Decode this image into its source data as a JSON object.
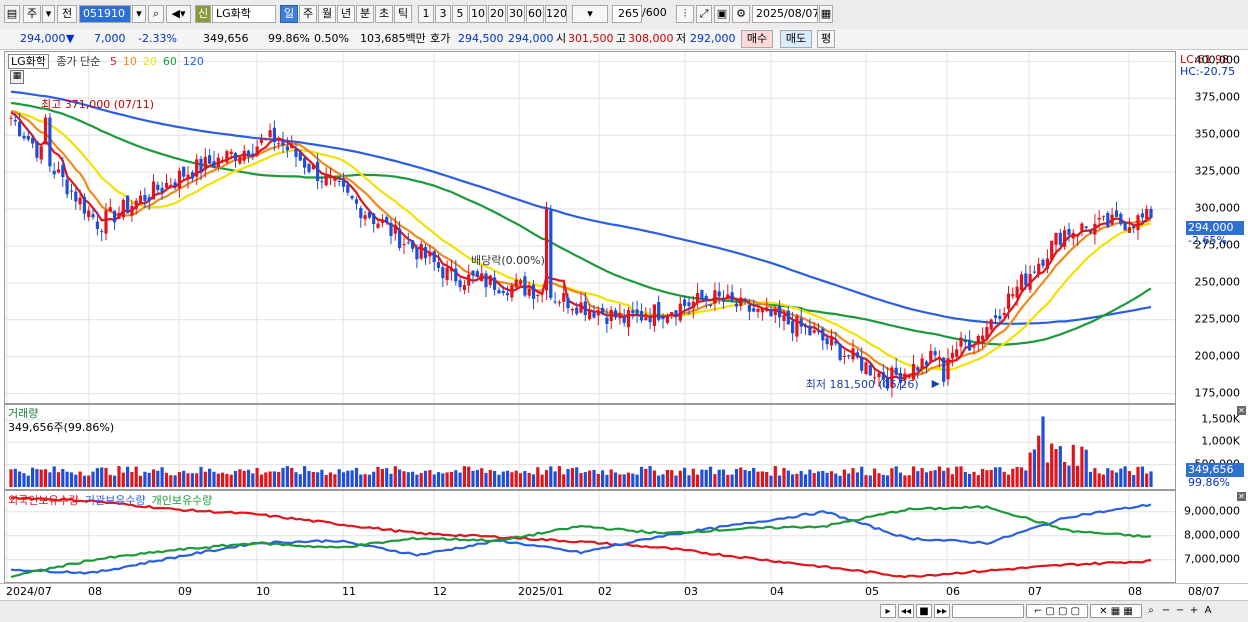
{
  "toolbar": {
    "type_label": "주",
    "mode_label": "전",
    "code": "051910",
    "badge": "신",
    "name": "LG화학",
    "periods": [
      "일",
      "주",
      "월",
      "년",
      "분",
      "초",
      "틱"
    ],
    "active_period": "일",
    "intervals": [
      "1",
      "3",
      "5",
      "10",
      "20",
      "30",
      "60",
      "120"
    ],
    "count": "265",
    "count_max": "/600",
    "date": "2025/08/07"
  },
  "quote": {
    "price": "294,000",
    "arrow": "▼",
    "change": "7,000",
    "change_pct": "-2.33%",
    "volume": "349,656",
    "vol_ratio": "99.86%",
    "turnover_pct": "0.50%",
    "amount": "103,685백만",
    "hoga_label": "호가",
    "ask": "294,500",
    "bid": "294,000",
    "open_label": "시",
    "open": "301,500",
    "high_label": "고",
    "high": "308,000",
    "low_label": "저",
    "low": "292,000",
    "buy_label": "매수",
    "sell_label": "매도",
    "avg_label": "평"
  },
  "price_panel": {
    "stock_name": "LG화학",
    "ma_title": "종가 단순",
    "ma_periods": [
      "5",
      "10",
      "20",
      "60",
      "120"
    ],
    "ma_colors": [
      "#e0141b",
      "#f08a1a",
      "#f4e100",
      "#1c9a3a",
      "#2a5fe0"
    ],
    "lc_label": "LC:61.98",
    "hc_label": "HC:-20.75",
    "current_tag": "294,000",
    "current_pct": "-2.65%",
    "high_annotation": "최고 371,000 (07/11)",
    "low_annotation": "최저 181,500 (05/26)",
    "dividend_annotation": "배당락(0.00%)",
    "y_ticks": [
      "400,000",
      "375,000",
      "350,000",
      "325,000",
      "300,000",
      "275,000",
      "250,000",
      "225,000",
      "200,000",
      "175,000"
    ]
  },
  "volume_panel": {
    "title": "거래량",
    "value": "349,656주(99.86%)",
    "y_ticks": [
      "1,500K",
      "1,000K",
      "500,000"
    ],
    "current_tag": "349,656",
    "current_pct": "99.86%"
  },
  "holdings_panel": {
    "series_names": [
      "외국인보유수량",
      "기관보유수량",
      "개인보유수량"
    ],
    "series_colors": [
      "#e0141b",
      "#2a5fe0",
      "#1c9a3a"
    ],
    "y_ticks": [
      "9,000,000",
      "8,000,000",
      "7,000,000"
    ]
  },
  "x_axis": {
    "labels": [
      "2024/07",
      "08",
      "09",
      "10",
      "11",
      "12",
      "2025/01",
      "02",
      "03",
      "04",
      "05",
      "06",
      "07",
      "08",
      "08/07"
    ]
  },
  "chart_data": {
    "type": "candlestick",
    "price_ylim": [
      170000,
      405000
    ],
    "key_points": [
      {
        "date": "2024/07/11",
        "label": "최고",
        "price": 371000
      },
      {
        "date": "2025/05/26",
        "label": "최저",
        "price": 181500
      },
      {
        "date": "2025/08/07",
        "label": "close",
        "price": 294000
      }
    ],
    "close_path": [
      {
        "month": "2024/07",
        "close": 362000
      },
      {
        "month": "2024/08",
        "close": 290000
      },
      {
        "month": "2024/09",
        "close": 325000
      },
      {
        "month": "2024/10",
        "close": 348000
      },
      {
        "month": "2024/11",
        "close": 300000
      },
      {
        "month": "2024/12",
        "close": 255000
      },
      {
        "month": "2025/01",
        "close": 245000
      },
      {
        "month": "2025/02",
        "close": 225000
      },
      {
        "month": "2025/03",
        "close": 240000
      },
      {
        "month": "2025/04",
        "close": 220000
      },
      {
        "month": "2025/05",
        "close": 185000
      },
      {
        "month": "2025/06",
        "close": 212000
      },
      {
        "month": "2025/07",
        "close": 285000
      },
      {
        "month": "2025/08",
        "close": 294000
      }
    ],
    "volume_ylim": [
      0,
      1700000
    ],
    "volume_last": 349656,
    "holdings_ylim": [
      6200000,
      9700000
    ],
    "holdings_series": [
      {
        "name": "외국인보유수량",
        "start": 9600000,
        "mid": 8000000,
        "min": 6250000,
        "end": 6950000
      },
      {
        "name": "기관보유수량",
        "start": 6600000,
        "mid": 7800000,
        "max": 9600000,
        "end": 9300000
      },
      {
        "name": "개인보유수량",
        "start": 6300000,
        "mid": 7900000,
        "max": 9200000,
        "end": 7950000
      }
    ]
  }
}
